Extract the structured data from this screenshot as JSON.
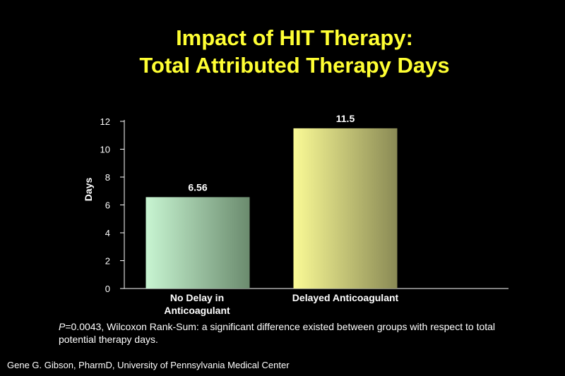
{
  "title": {
    "line1": "Impact of HIT Therapy:",
    "line2": "Total Attributed Therapy Days"
  },
  "chart_data": {
    "type": "bar",
    "categories": [
      "No Delay in Anticoagulant",
      "Delayed Anticoagulant"
    ],
    "category_lines": [
      [
        "No Delay in",
        "Anticoagulant"
      ],
      [
        "Delayed Anticoagulant"
      ]
    ],
    "values": [
      6.56,
      11.5
    ],
    "value_labels": [
      "6.56",
      "11.5"
    ],
    "ylabel": "Days",
    "xlabel": "",
    "ylim": [
      0,
      12
    ],
    "yticks": [
      0,
      2,
      4,
      6,
      8,
      10,
      12
    ],
    "bar_colors": [
      [
        "#c8f5d2",
        "#6b8b6e"
      ],
      [
        "#fafa96",
        "#8a8a55"
      ]
    ],
    "grid": false,
    "legend": "none"
  },
  "footnote": {
    "p_symbol": "P",
    "text": "=0.0043, Wilcoxon Rank-Sum:  a significant difference existed between groups with respect to total potential therapy days."
  },
  "credit": "Gene G. Gibson, PharmD, University of Pennsylvania Medical Center",
  "colors": {
    "background": "#000000",
    "title": "#ffff33",
    "text": "#ffffff"
  }
}
